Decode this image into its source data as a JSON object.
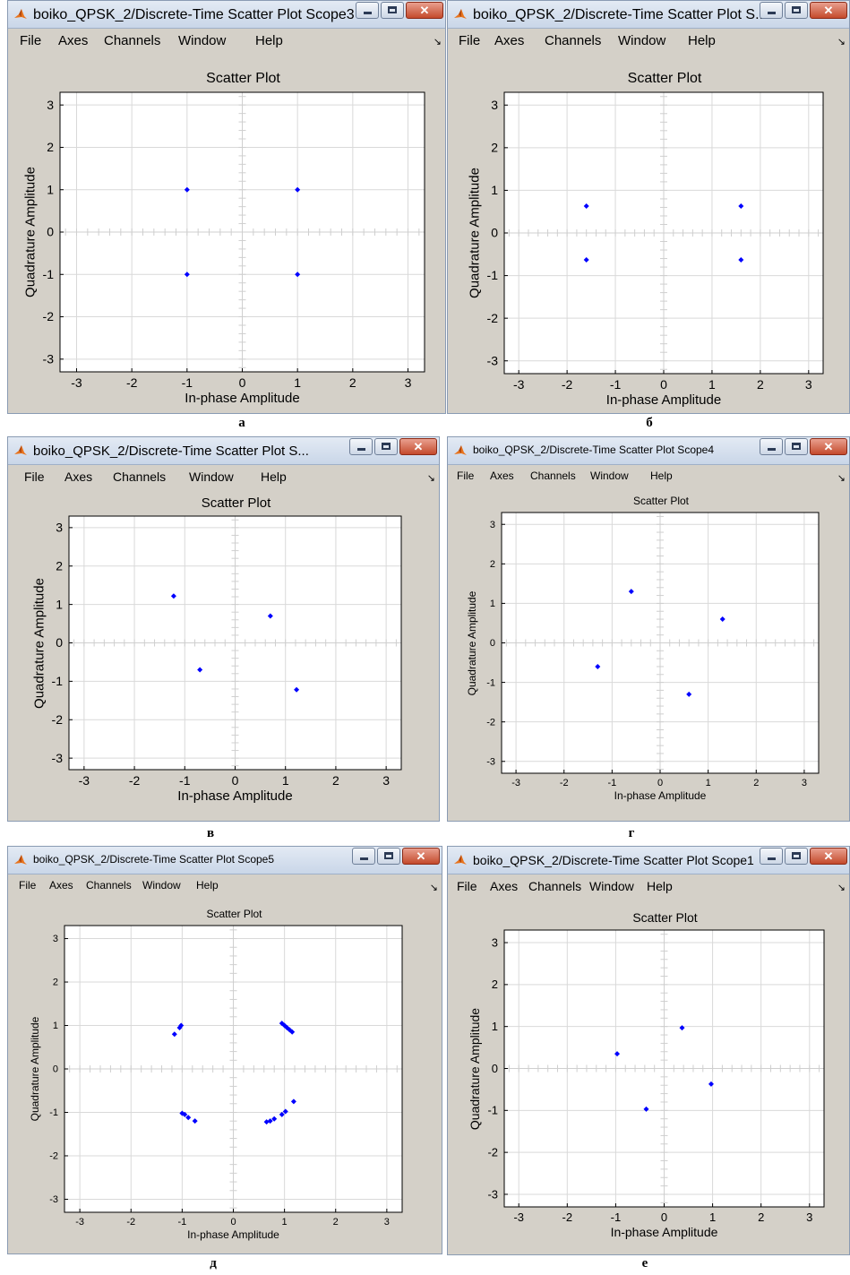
{
  "panels": [
    {
      "id": "a",
      "window_title": "boiko_QPSK_2/Discrete-Time Scatter Plot Scope3",
      "menu": [
        "File",
        "Axes",
        "Channels",
        "Window",
        "Help"
      ],
      "caption": "а",
      "chart_data": {
        "type": "scatter",
        "title": "Scatter Plot",
        "xlabel": "In-phase Amplitude",
        "ylabel": "Quadrature Amplitude",
        "xlim": [
          -3.3,
          3.3
        ],
        "ylim": [
          -3.3,
          3.3
        ],
        "xticks": [
          -3,
          -2,
          -1,
          0,
          1,
          2,
          3
        ],
        "yticks": [
          -3,
          -2,
          -1,
          0,
          1,
          2,
          3
        ],
        "grid": true,
        "marker_color": "#0000ff",
        "points": [
          [
            -1,
            1
          ],
          [
            1,
            1
          ],
          [
            -1,
            -1
          ],
          [
            1,
            -1
          ]
        ]
      }
    },
    {
      "id": "b",
      "window_title": "boiko_QPSK_2/Discrete-Time Scatter Plot S...",
      "menu": [
        "File",
        "Axes",
        "Channels",
        "Window",
        "Help"
      ],
      "caption": "б",
      "chart_data": {
        "type": "scatter",
        "title": "Scatter Plot",
        "xlabel": "In-phase Amplitude",
        "ylabel": "Quadrature Amplitude",
        "xlim": [
          -3.3,
          3.3
        ],
        "ylim": [
          -3.3,
          3.3
        ],
        "xticks": [
          -3,
          -2,
          -1,
          0,
          1,
          2,
          3
        ],
        "yticks": [
          -3,
          -2,
          -1,
          0,
          1,
          2,
          3
        ],
        "grid": true,
        "marker_color": "#0000ff",
        "points": [
          [
            -1.6,
            0.63
          ],
          [
            1.6,
            0.63
          ],
          [
            -1.6,
            -0.63
          ],
          [
            1.6,
            -0.63
          ]
        ]
      }
    },
    {
      "id": "v",
      "window_title": "boiko_QPSK_2/Discrete-Time Scatter Plot S...",
      "menu": [
        "File",
        "Axes",
        "Channels",
        "Window",
        "Help"
      ],
      "caption": "в",
      "chart_data": {
        "type": "scatter",
        "title": "Scatter Plot",
        "xlabel": "In-phase Amplitude",
        "ylabel": "Quadrature Amplitude",
        "xlim": [
          -3.3,
          3.3
        ],
        "ylim": [
          -3.3,
          3.3
        ],
        "xticks": [
          -3,
          -2,
          -1,
          0,
          1,
          2,
          3
        ],
        "yticks": [
          -3,
          -2,
          -1,
          0,
          1,
          2,
          3
        ],
        "grid": true,
        "marker_color": "#0000ff",
        "points": [
          [
            -1.22,
            1.22
          ],
          [
            0.7,
            0.7
          ],
          [
            -0.7,
            -0.7
          ],
          [
            1.22,
            -1.22
          ]
        ]
      }
    },
    {
      "id": "g",
      "window_title": "boiko_QPSK_2/Discrete-Time Scatter Plot Scope4",
      "menu": [
        "File",
        "Axes",
        "Channels",
        "Window",
        "Help"
      ],
      "caption": "г",
      "chart_data": {
        "type": "scatter",
        "title": "Scatter Plot",
        "xlabel": "In-phase Amplitude",
        "ylabel": "Quadrature Amplitude",
        "xlim": [
          -3.3,
          3.3
        ],
        "ylim": [
          -3.3,
          3.3
        ],
        "xticks": [
          -3,
          -2,
          -1,
          0,
          1,
          2,
          3
        ],
        "yticks": [
          -3,
          -2,
          -1,
          0,
          1,
          2,
          3
        ],
        "grid": true,
        "marker_color": "#0000ff",
        "points": [
          [
            -0.6,
            1.3
          ],
          [
            1.3,
            0.6
          ],
          [
            -1.3,
            -0.6
          ],
          [
            0.6,
            -1.3
          ]
        ]
      }
    },
    {
      "id": "d",
      "window_title": "boiko_QPSK_2/Discrete-Time Scatter Plot Scope5",
      "menu": [
        "File",
        "Axes",
        "Channels",
        "Window",
        "Help"
      ],
      "caption": "д",
      "chart_data": {
        "type": "scatter",
        "title": "Scatter Plot",
        "xlabel": "In-phase Amplitude",
        "ylabel": "Quadrature Amplitude",
        "xlim": [
          -3.3,
          3.3
        ],
        "ylim": [
          -3.3,
          3.3
        ],
        "xticks": [
          -3,
          -2,
          -1,
          0,
          1,
          2,
          3
        ],
        "yticks": [
          -3,
          -2,
          -1,
          0,
          1,
          2,
          3
        ],
        "grid": true,
        "marker_color": "#0000ff",
        "points": [
          [
            -1.15,
            0.8
          ],
          [
            -1.05,
            0.95
          ],
          [
            -1.02,
            1.0
          ],
          [
            0.95,
            1.05
          ],
          [
            1.0,
            1.0
          ],
          [
            1.05,
            0.95
          ],
          [
            1.1,
            0.9
          ],
          [
            1.15,
            0.85
          ],
          [
            -1.0,
            -1.02
          ],
          [
            -0.95,
            -1.05
          ],
          [
            -0.88,
            -1.12
          ],
          [
            -0.75,
            -1.2
          ],
          [
            0.65,
            -1.22
          ],
          [
            0.72,
            -1.2
          ],
          [
            0.8,
            -1.15
          ],
          [
            0.95,
            -1.05
          ],
          [
            1.02,
            -0.98
          ],
          [
            1.18,
            -0.75
          ]
        ]
      }
    },
    {
      "id": "e",
      "window_title": "boiko_QPSK_2/Discrete-Time Scatter Plot Scope1",
      "menu": [
        "File",
        "Axes",
        "Channels",
        "Window",
        "Help"
      ],
      "caption": "е",
      "chart_data": {
        "type": "scatter",
        "title": "Scatter Plot",
        "xlabel": "In-phase Amplitude",
        "ylabel": "Quadrature Amplitude",
        "xlim": [
          -3.3,
          3.3
        ],
        "ylim": [
          -3.3,
          3.3
        ],
        "xticks": [
          -3,
          -2,
          -1,
          0,
          1,
          2,
          3
        ],
        "yticks": [
          -3,
          -2,
          -1,
          0,
          1,
          2,
          3
        ],
        "grid": true,
        "marker_color": "#0000ff",
        "points": [
          [
            -0.97,
            0.35
          ],
          [
            0.37,
            0.97
          ],
          [
            -0.37,
            -0.97
          ],
          [
            0.97,
            -0.37
          ]
        ]
      }
    }
  ]
}
